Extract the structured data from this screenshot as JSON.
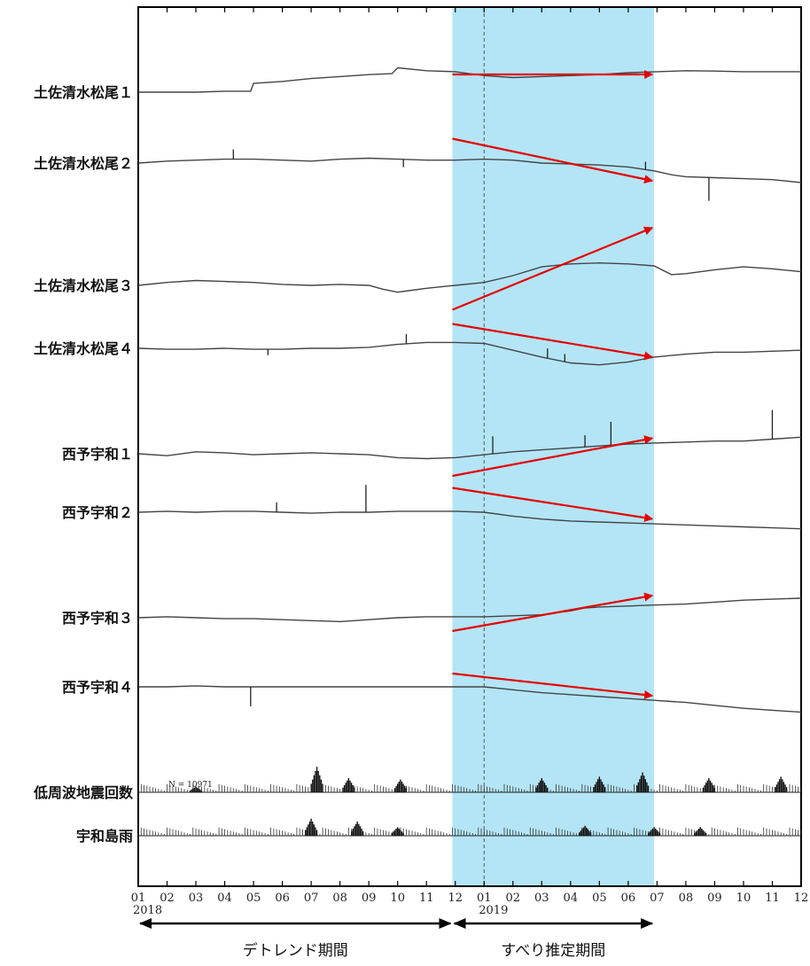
{
  "chart_data": {
    "type": "line",
    "x_ticks": [
      "01",
      "02",
      "03",
      "04",
      "05",
      "06",
      "07",
      "08",
      "09",
      "10",
      "11",
      "12",
      "01",
      "02",
      "03",
      "04",
      "05",
      "06",
      "07",
      "08",
      "09",
      "10",
      "11",
      "12"
    ],
    "years": [
      {
        "label": "2018",
        "month_index": 0
      },
      {
        "label": "2019",
        "month_index": 12
      }
    ],
    "highlight": {
      "start": 10.9,
      "end": 17.9
    },
    "dashed_line": 12.0,
    "count_note": "N = 10971",
    "periods": [
      {
        "label": "デトレンド期間",
        "start": 0,
        "end": 10.9
      },
      {
        "label": "すべり推定期間",
        "start": 10.9,
        "end": 17.9
      }
    ],
    "arrow_color": "#e60000",
    "highlight_color": "#b3e5f7",
    "series": [
      {
        "name": "土佐清水松尾１",
        "arrow": [
          0.4,
          0.4
        ],
        "x": [
          0,
          1,
          2,
          3,
          3.9,
          4,
          5,
          6,
          7,
          8,
          8.8,
          9,
          10,
          11,
          11,
          12,
          13,
          14,
          15,
          16,
          17,
          18,
          19,
          20,
          21,
          22,
          23
        ],
        "y": [
          0,
          0,
          0,
          0.05,
          0.05,
          0.45,
          0.55,
          0.7,
          0.8,
          0.9,
          0.95,
          1.25,
          1.1,
          1.05,
          1.05,
          0.85,
          0.75,
          0.8,
          0.85,
          0.9,
          1.0,
          1.05,
          1.1,
          1.08,
          1.05,
          1.05,
          1.05
        ]
      },
      {
        "name": "土佐清水松尾２",
        "arrow": [
          0.55,
          -0.4
        ],
        "spikes": [
          {
            "x": 3.3,
            "v": 0.25
          },
          {
            "x": 9.2,
            "v": -0.2
          },
          {
            "x": 17.6,
            "v": 0.2
          },
          {
            "x": 19.8,
            "v": -0.6
          }
        ],
        "x": [
          0,
          1,
          2,
          3,
          4,
          5,
          6,
          7,
          8,
          9,
          10,
          11,
          12,
          13,
          14,
          15,
          16,
          17,
          17.9,
          18.5,
          19,
          20,
          21,
          22,
          23
        ],
        "y": [
          0,
          0.1,
          0.15,
          0.2,
          0.2,
          0.15,
          0.1,
          0.2,
          0.25,
          0.2,
          0.15,
          0.15,
          0.2,
          0.15,
          0.0,
          -0.05,
          -0.1,
          -0.2,
          -0.4,
          -0.6,
          -0.7,
          -0.75,
          -0.8,
          -0.85,
          -1.0
        ]
      },
      {
        "name": "土佐清水松尾３",
        "arrow": [
          -0.55,
          1.3
        ],
        "x": [
          0,
          1,
          2,
          3,
          4,
          5,
          6,
          7,
          8,
          8.5,
          9,
          9.5,
          10,
          11,
          12,
          13,
          14,
          15,
          16,
          17,
          17.9,
          18.5,
          19,
          20,
          21,
          22,
          23
        ],
        "y": [
          0,
          0.15,
          0.25,
          0.2,
          0.15,
          0.05,
          0.0,
          0.05,
          0.0,
          -0.2,
          -0.35,
          -0.25,
          -0.15,
          0.0,
          0.15,
          0.5,
          0.95,
          1.1,
          1.15,
          1.1,
          1.0,
          0.55,
          0.6,
          0.8,
          0.95,
          0.85,
          0.7
        ]
      },
      {
        "name": "土佐清水松尾４",
        "arrow": [
          0.55,
          -0.2
        ],
        "spikes": [
          {
            "x": 4.5,
            "v": -0.15
          },
          {
            "x": 9.3,
            "v": 0.25
          },
          {
            "x": 14.2,
            "v": 0.25
          },
          {
            "x": 14.8,
            "v": 0.2
          }
        ],
        "x": [
          0,
          1,
          2,
          3,
          4,
          5,
          6,
          7,
          8,
          9,
          10,
          11,
          12,
          13,
          14,
          15,
          16,
          17,
          17.9,
          19,
          20,
          21,
          22,
          23
        ],
        "y": [
          0,
          -0.05,
          -0.05,
          0.0,
          -0.05,
          -0.05,
          0.0,
          0.0,
          0.05,
          0.2,
          0.3,
          0.3,
          0.25,
          -0.1,
          -0.45,
          -0.75,
          -0.85,
          -0.7,
          -0.45,
          -0.3,
          -0.2,
          -0.2,
          -0.15,
          -0.1
        ]
      },
      {
        "name": "西予宇和１",
        "arrow": [
          -0.5,
          0.35
        ],
        "spikes": [
          {
            "x": 12.3,
            "v": 0.45
          },
          {
            "x": 15.5,
            "v": 0.3
          },
          {
            "x": 16.4,
            "v": 0.6
          },
          {
            "x": 22,
            "v": 0.75
          }
        ],
        "x": [
          0,
          1,
          2,
          3,
          4,
          5,
          6,
          7,
          8,
          9,
          10,
          11,
          12,
          13,
          14,
          15,
          16,
          17,
          17.9,
          19,
          20,
          21,
          22,
          23
        ],
        "y": [
          0,
          -0.1,
          0.1,
          0.05,
          -0.05,
          0.0,
          0.05,
          0.0,
          -0.05,
          -0.2,
          -0.25,
          -0.2,
          -0.05,
          0.1,
          0.2,
          0.3,
          0.4,
          0.5,
          0.55,
          0.6,
          0.65,
          0.65,
          0.75,
          0.85
        ]
      },
      {
        "name": "西予宇和２",
        "arrow": [
          0.55,
          -0.15
        ],
        "spikes": [
          {
            "x": 4.8,
            "v": 0.25
          },
          {
            "x": 7.9,
            "v": 0.7
          }
        ],
        "x": [
          0,
          1,
          2,
          3,
          4,
          5,
          6,
          7,
          8,
          9,
          10,
          11,
          12,
          13,
          14,
          15,
          16,
          17,
          18,
          19,
          20,
          21,
          22,
          23
        ],
        "y": [
          0,
          0.05,
          0.0,
          0.05,
          0.05,
          0.0,
          -0.05,
          0.0,
          0.0,
          0.05,
          0.05,
          0.05,
          0.0,
          -0.2,
          -0.35,
          -0.45,
          -0.5,
          -0.55,
          -0.6,
          -0.65,
          -0.7,
          -0.75,
          -0.8,
          -0.85
        ]
      },
      {
        "name": "西予宇和３",
        "arrow": [
          -0.3,
          0.5
        ],
        "x": [
          0,
          1,
          2,
          3,
          4,
          5,
          6,
          7,
          8,
          9,
          10,
          11,
          12,
          13,
          14,
          15,
          15.5,
          16,
          17,
          17.9,
          19,
          20,
          21,
          22,
          23
        ],
        "y": [
          0,
          0.05,
          0.0,
          -0.05,
          -0.05,
          -0.1,
          -0.15,
          -0.2,
          -0.1,
          0.0,
          0.05,
          0.05,
          0.05,
          0.1,
          0.15,
          0.35,
          0.5,
          0.55,
          0.6,
          0.65,
          0.7,
          0.8,
          0.9,
          0.95,
          1.0
        ]
      },
      {
        "name": "西予宇和４",
        "arrow": [
          0.3,
          -0.2
        ],
        "spikes": [
          {
            "x": 3.9,
            "v": -0.5
          }
        ],
        "x": [
          0,
          1,
          2,
          3,
          4,
          5,
          6,
          7,
          8,
          9,
          10,
          11,
          12,
          13,
          14,
          15,
          16,
          17,
          18,
          19,
          20,
          21,
          22,
          23
        ],
        "y": [
          0,
          0.0,
          0.05,
          0.0,
          0.0,
          0.0,
          0.0,
          0.0,
          0.0,
          0.0,
          0.0,
          0.0,
          0.0,
          -0.15,
          -0.3,
          -0.4,
          -0.5,
          -0.6,
          -0.7,
          -0.8,
          -0.95,
          -1.1,
          -1.2,
          -1.3
        ]
      }
    ],
    "bar_series": [
      {
        "name": "低周波地震回数",
        "bursts": [
          {
            "x": 2,
            "h": 0.2
          },
          {
            "x": 6.2,
            "h": 0.9
          },
          {
            "x": 7.3,
            "h": 0.5
          },
          {
            "x": 9.1,
            "h": 0.45
          },
          {
            "x": 14,
            "h": 0.5
          },
          {
            "x": 16,
            "h": 0.55
          },
          {
            "x": 17.5,
            "h": 0.7
          },
          {
            "x": 19.8,
            "h": 0.5
          },
          {
            "x": 22.3,
            "h": 0.55
          }
        ]
      },
      {
        "name": "宇和島雨",
        "bursts": [
          {
            "x": 6.0,
            "h": 0.6
          },
          {
            "x": 7.6,
            "h": 0.5
          },
          {
            "x": 9.0,
            "h": 0.3
          },
          {
            "x": 15.5,
            "h": 0.35
          },
          {
            "x": 17.9,
            "h": 0.3
          },
          {
            "x": 19.5,
            "h": 0.3
          }
        ]
      }
    ]
  }
}
